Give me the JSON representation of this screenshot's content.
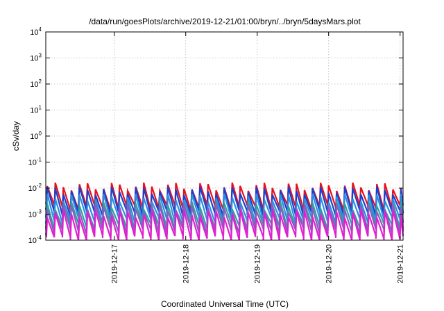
{
  "chart_data": {
    "type": "line",
    "title": "/data/run/goesPlots/archive/2019-12-21/01:00/bryn/../bryn/5daysMars.plot",
    "xlabel": "Coordinated Universal Time (UTC)",
    "ylabel": "cSv/day",
    "yscale": "log",
    "ylim": [
      0.0001,
      10000
    ],
    "xlim": [
      "2019-12-16 01:00",
      "2019-12-21 01:00"
    ],
    "grid": true,
    "legend": "none",
    "x_ticks": [
      "2019-12-17",
      "2019-12-18",
      "2019-12-19",
      "2019-12-20",
      "2019-12-21"
    ],
    "y_ticks": [
      {
        "base": "10",
        "exp": "-4"
      },
      {
        "base": "10",
        "exp": "-3"
      },
      {
        "base": "10",
        "exp": "-2"
      },
      {
        "base": "10",
        "exp": "-1"
      },
      {
        "base": "10",
        "exp": "0"
      },
      {
        "base": "10",
        "exp": "1"
      },
      {
        "base": "10",
        "exp": "2"
      },
      {
        "base": "10",
        "exp": "3"
      },
      {
        "base": "10",
        "exp": "4"
      }
    ],
    "series_pattern": {
      "description_free": true,
      "sawtooth_period_hours": 2.7,
      "first_peak": "2019-12-16 01:30"
    },
    "series": [
      {
        "color": "#e8101c",
        "peak": 0.012,
        "trough": 0.0018
      },
      {
        "color": "#1a3fd0",
        "peak": 0.0085,
        "trough": 0.0011
      },
      {
        "color": "#2a8fe0",
        "peak": 0.0045,
        "trough": 0.0006
      },
      {
        "color": "#2fa0a0",
        "peak": 0.0022,
        "trough": 0.00035
      },
      {
        "color": "#8a5cc0",
        "peak": 0.0018,
        "trough": 0.00022
      },
      {
        "color": "#e020d0",
        "peak": 0.0011,
        "trough": 0.00012
      }
    ]
  }
}
